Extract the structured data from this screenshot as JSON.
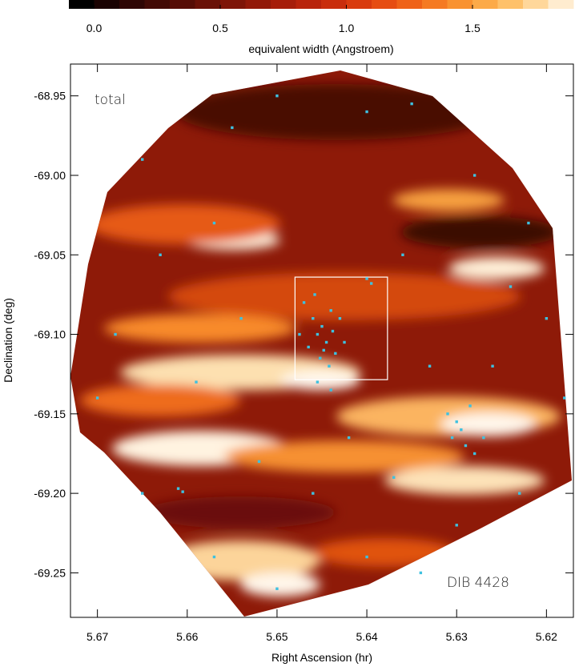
{
  "chart_data": {
    "type": "scatter",
    "xlabel": "Right Ascension (hr)",
    "ylabel": "Declination (deg)",
    "xlim": [
      5.673,
      5.617
    ],
    "ylim": [
      -69.278,
      -68.93
    ],
    "xticks": [
      5.67,
      5.66,
      5.65,
      5.64,
      5.63,
      5.62
    ],
    "yticks": [
      -68.95,
      {
        "value": -69.0,
        "label": "-69.00"
      },
      -69.05,
      {
        "value": -69.1,
        "label": "-69.10"
      },
      -69.15,
      {
        "value": -69.2,
        "label": "-69.20"
      },
      -69.25
    ],
    "annotations": [
      "total",
      "DIB 4428"
    ],
    "box": {
      "x": [
        5.648,
        5.6377
      ],
      "y": [
        -69.064,
        -69.1285
      ],
      "color": "#ffffff"
    },
    "colorbar": {
      "label": "equivalent width (Angstroem)",
      "zlim": [
        -0.1,
        1.9
      ],
      "ticks": [
        {
          "value": 0,
          "label": "0.0"
        },
        0.5,
        {
          "value": 1,
          "label": "1.0"
        },
        1.5
      ],
      "colors": [
        "#000000",
        "#1a0302",
        "#2e0604",
        "#420a05",
        "#560d06",
        "#6a1107",
        "#7e1508",
        "#921909",
        "#a61d0a",
        "#b8230b",
        "#c92d0c",
        "#d93b0e",
        "#e64d12",
        "#ef6218",
        "#f57a22",
        "#f99230",
        "#fcaa48",
        "#fec16a",
        "#ffd79a",
        "#ffeccf"
      ]
    },
    "series": [
      {
        "color": "#3ec1e0",
        "x": [
          5.645,
          5.6455,
          5.6445,
          5.646,
          5.644,
          5.6448,
          5.6452,
          5.6438,
          5.6465,
          5.6435,
          5.647,
          5.643,
          5.6458,
          5.6442,
          5.6475,
          5.6425,
          5.64,
          5.6395,
          5.6455,
          5.644,
          5.63,
          5.6295,
          5.629,
          5.6305,
          5.628,
          5.631,
          5.627,
          5.6285,
          5.661,
          5.6605,
          5.665,
          5.655,
          5.65,
          5.64,
          5.635,
          5.628,
          5.622,
          5.62,
          5.618,
          5.623,
          5.63,
          5.64,
          5.65,
          5.657,
          5.665,
          5.67,
          5.668,
          5.663,
          5.657,
          5.652,
          5.646,
          5.637,
          5.633,
          5.626,
          5.624,
          5.636,
          5.654,
          5.659,
          5.642,
          5.634
        ],
        "y": [
          -69.095,
          -69.1,
          -69.105,
          -69.09,
          -69.085,
          -69.11,
          -69.115,
          -69.098,
          -69.108,
          -69.112,
          -69.08,
          -69.09,
          -69.075,
          -69.12,
          -69.1,
          -69.105,
          -69.065,
          -69.068,
          -69.13,
          -69.135,
          -69.155,
          -69.16,
          -69.17,
          -69.165,
          -69.175,
          -69.15,
          -69.165,
          -69.145,
          -69.197,
          -69.199,
          -68.99,
          -68.97,
          -68.95,
          -68.96,
          -68.955,
          -69.0,
          -69.03,
          -69.09,
          -69.14,
          -69.2,
          -69.22,
          -69.24,
          -69.26,
          -69.24,
          -69.2,
          -69.14,
          -69.1,
          -69.05,
          -69.03,
          -69.18,
          -69.2,
          -69.19,
          -69.12,
          -69.12,
          -69.07,
          -69.05,
          -69.09,
          -69.13,
          -69.165,
          -69.25
        ]
      }
    ]
  }
}
